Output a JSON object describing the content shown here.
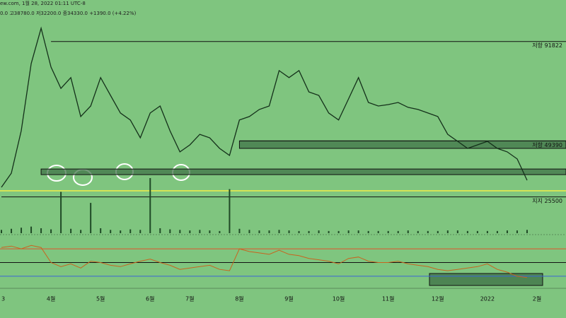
{
  "header": {
    "title": "ew.com, 1월 28, 2022 01:11 UTC-8",
    "ohlc": "0.0 고38780.0 저32200.0 종34330.0 +1390.0 (+4.22%)"
  },
  "chart_data": {
    "type": "line",
    "categories": [
      "3",
      null,
      null,
      null,
      null,
      "4월",
      null,
      null,
      null,
      null,
      "5월",
      null,
      null,
      null,
      null,
      "6월",
      null,
      null,
      null,
      "7월",
      null,
      null,
      null,
      null,
      "8월",
      null,
      null,
      null,
      null,
      "9월",
      null,
      null,
      null,
      null,
      "10월",
      null,
      null,
      null,
      null,
      "11월",
      null,
      null,
      null,
      null,
      "12월",
      null,
      null,
      null,
      null,
      "2022",
      null,
      null,
      null,
      null,
      "2월"
    ],
    "series": [
      {
        "color": "#14301a",
        "values": [
          29600,
          35600,
          53700,
          82400,
          97500,
          80900,
          71800,
          76400,
          59800,
          64300,
          76400,
          68800,
          61300,
          58300,
          50700,
          61300,
          64300,
          53700,
          44700,
          47700,
          52200,
          50700,
          46200,
          43200,
          58300,
          59800,
          62800,
          64300,
          79400,
          76400,
          79400,
          70300,
          68800,
          61300,
          58300,
          67300,
          76400,
          65800,
          64300,
          64900,
          65800,
          63700,
          62800,
          61300,
          59800,
          52200,
          49200,
          46200,
          47700,
          49200,
          46200,
          44700,
          41700,
          32600,
          null
        ]
      }
    ],
    "ylim": [
      10000,
      105000
    ],
    "levels": [
      {
        "label": "저항 91822",
        "value": 91822,
        "start": 5
      },
      {
        "label": "저항 49390",
        "value": 49390,
        "start": 24
      },
      {
        "label": "지지 25500",
        "value": 25500,
        "start": 0
      }
    ],
    "extra_levels": [
      {
        "value": 28100,
        "color": "#f2ef4a"
      }
    ],
    "zones": [
      {
        "low": 46200,
        "high": 49390,
        "start": 24
      },
      {
        "low": 35000,
        "high": 37400,
        "start": 4
      }
    ],
    "volume": {
      "color": "#1f4a26",
      "ylim": [
        0,
        100
      ],
      "values": [
        6,
        8,
        10,
        12,
        9,
        7,
        75,
        8,
        6,
        55,
        9,
        6,
        5,
        7,
        6,
        100,
        9,
        7,
        6,
        5,
        6,
        5,
        4,
        80,
        8,
        6,
        5,
        5,
        6,
        5,
        4,
        4,
        5,
        4,
        4,
        5,
        5,
        4,
        4,
        4,
        4,
        5,
        4,
        4,
        4,
        5,
        5,
        4,
        4,
        4,
        4,
        5,
        5,
        6,
        null
      ]
    },
    "rsi": {
      "color": "#c8641e",
      "ylim": [
        0,
        100
      ],
      "levels": [
        {
          "value": 70,
          "color": "#e0502a"
        },
        {
          "value": 50,
          "color": "#111"
        },
        {
          "value": 30,
          "color": "#3a64d8"
        }
      ],
      "values": [
        72,
        74,
        70,
        75,
        72,
        50,
        44,
        48,
        42,
        52,
        50,
        46,
        44,
        48,
        52,
        55,
        50,
        46,
        40,
        42,
        44,
        46,
        40,
        38,
        70,
        66,
        64,
        62,
        68,
        62,
        60,
        56,
        54,
        52,
        48,
        56,
        58,
        52,
        50,
        50,
        52,
        48,
        46,
        44,
        40,
        38,
        40,
        42,
        44,
        48,
        40,
        36,
        30,
        28,
        null
      ]
    }
  }
}
